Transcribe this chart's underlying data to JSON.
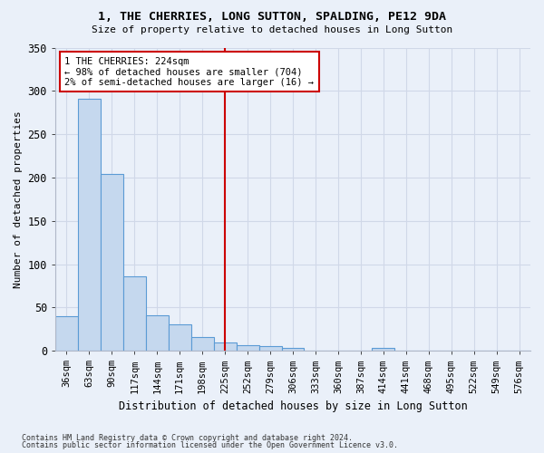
{
  "title": "1, THE CHERRIES, LONG SUTTON, SPALDING, PE12 9DA",
  "subtitle": "Size of property relative to detached houses in Long Sutton",
  "xlabel": "Distribution of detached houses by size in Long Sutton",
  "ylabel": "Number of detached properties",
  "footnote1": "Contains HM Land Registry data © Crown copyright and database right 2024.",
  "footnote2": "Contains public sector information licensed under the Open Government Licence v3.0.",
  "bar_labels": [
    "36sqm",
    "63sqm",
    "90sqm",
    "117sqm",
    "144sqm",
    "171sqm",
    "198sqm",
    "225sqm",
    "252sqm",
    "279sqm",
    "306sqm",
    "333sqm",
    "360sqm",
    "387sqm",
    "414sqm",
    "441sqm",
    "468sqm",
    "495sqm",
    "522sqm",
    "549sqm",
    "576sqm"
  ],
  "bar_values": [
    40,
    291,
    204,
    86,
    41,
    30,
    16,
    10,
    6,
    5,
    3,
    0,
    0,
    0,
    3,
    0,
    0,
    0,
    0,
    0,
    0
  ],
  "bar_color": "#c5d8ee",
  "bar_edge_color": "#5b9bd5",
  "vline_color": "#cc0000",
  "vline_index": 7.5,
  "annotation_text": "1 THE CHERRIES: 224sqm\n← 98% of detached houses are smaller (704)\n2% of semi-detached houses are larger (16) →",
  "annotation_box_color": "#ffffff",
  "annotation_box_edge": "#cc0000",
  "bg_color": "#eaf0f9",
  "plot_bg_color": "#eaf0f9",
  "grid_color": "#d0d8e8",
  "ylim": [
    0,
    350
  ],
  "yticks": [
    0,
    50,
    100,
    150,
    200,
    250,
    300,
    350
  ]
}
